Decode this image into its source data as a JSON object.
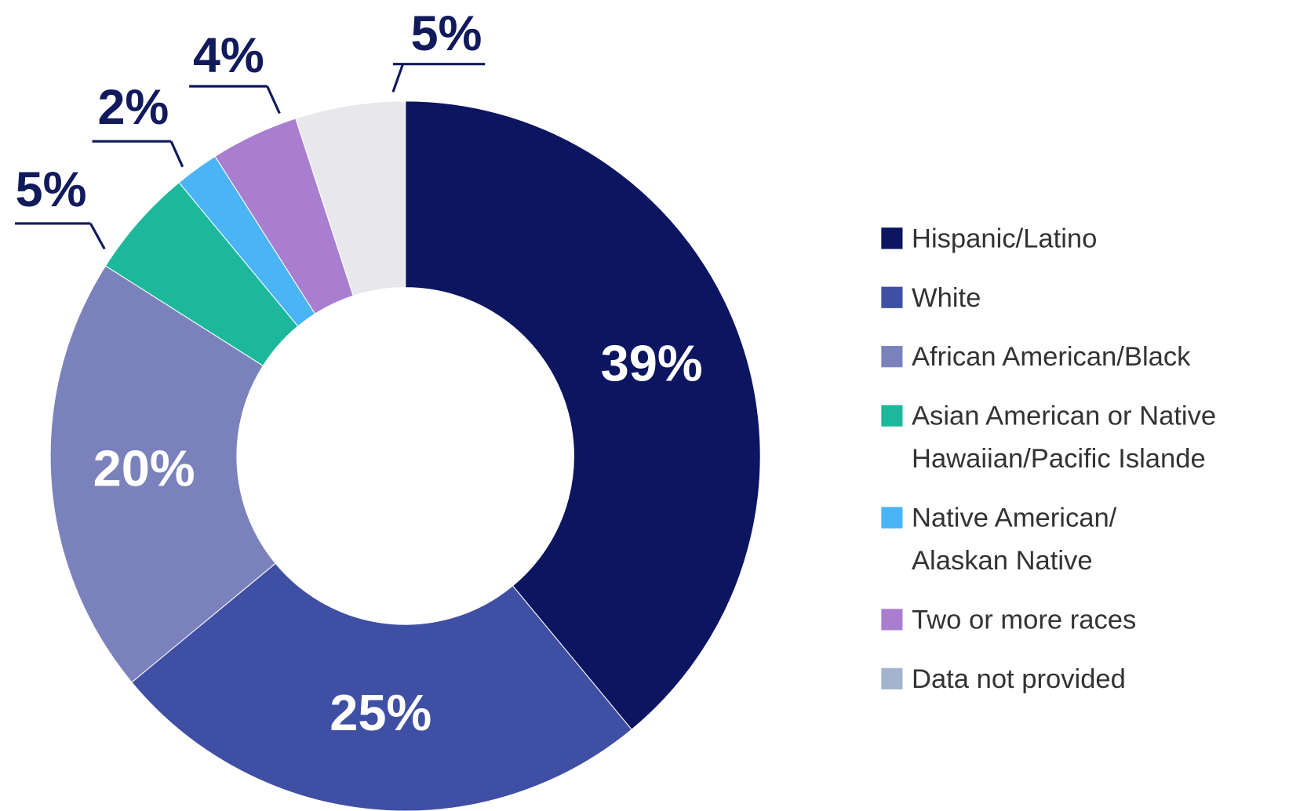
{
  "chart_data": {
    "type": "donut",
    "categories": [
      "Hispanic/Latino",
      "White",
      "African American/Black",
      "Asian American or Native\nHawaiian/Pacific Islande",
      "Native American/\nAlaskan Native",
      "Two or more races",
      "Data not provided"
    ],
    "values": [
      39,
      25,
      20,
      5,
      2,
      4,
      5
    ],
    "value_labels": [
      "39%",
      "25%",
      "20%",
      "5%",
      "2%",
      "4%",
      "5%"
    ],
    "colors": [
      "#0b1560",
      "#3f4fa3",
      "#7b82bb",
      "#1db89b",
      "#4ab4f5",
      "#a97ed0",
      "#e8e8ec"
    ],
    "legend_colors": [
      "#0b1560",
      "#3f4fa3",
      "#7b82bb",
      "#1db89b",
      "#4ab4f5",
      "#a97ed0",
      "#a5b4cd"
    ],
    "legend": "right"
  }
}
